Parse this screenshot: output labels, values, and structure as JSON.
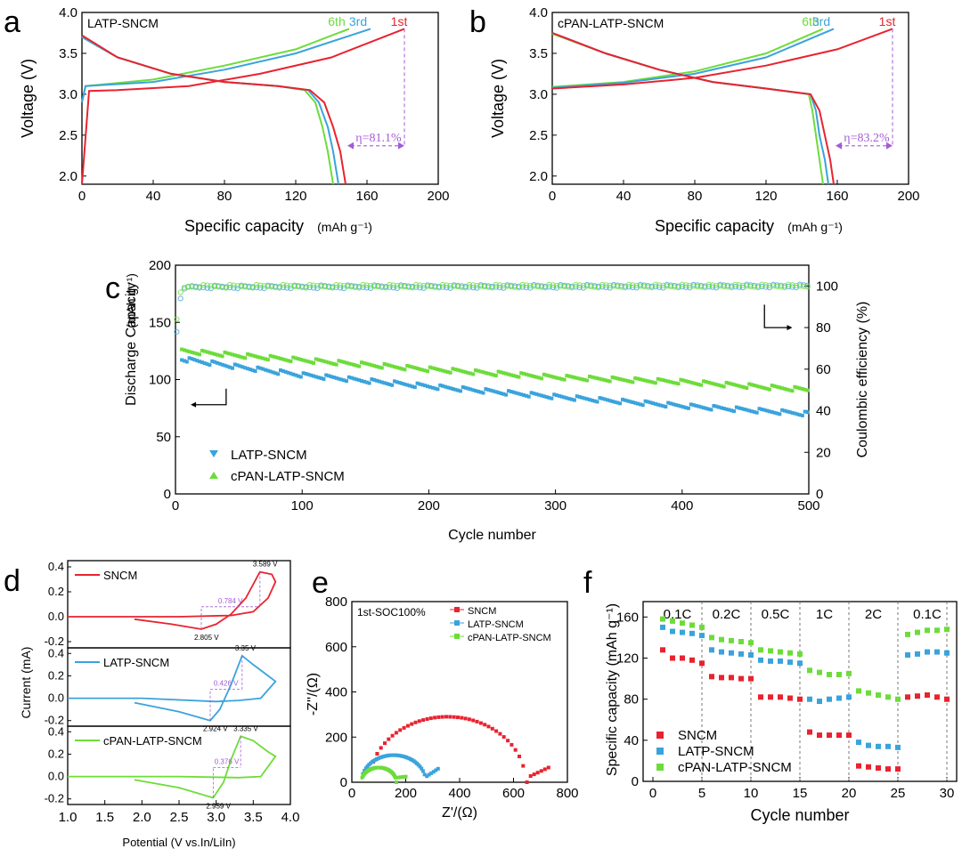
{
  "colors": {
    "red": "#e8232f",
    "blue": "#3aa3dc",
    "green": "#6ddc3a",
    "purple": "#a35cd6",
    "black": "#000000"
  },
  "chart_data": [
    {
      "panel": "a",
      "type": "line",
      "label": "LATP-SNCM",
      "xlabel": "Specific capacity",
      "xunit": "(mAh g⁻¹)",
      "ylabel": "Voltage (V)",
      "xlim": [
        0,
        200
      ],
      "ylim": [
        1.9,
        4.0
      ],
      "xticks": [
        "0",
        "40",
        "80",
        "120",
        "160",
        "200"
      ],
      "yticks": [
        "2.0",
        "2.5",
        "3.0",
        "3.5",
        "4.0"
      ],
      "curve_labels": [
        "6th",
        "3rd",
        "1st"
      ],
      "annotation": "η=81.1%",
      "series": [
        {
          "name": "1st",
          "color": "red",
          "charge": [
            [
              0,
              1.9
            ],
            [
              4,
              3.04
            ],
            [
              20,
              3.05
            ],
            [
              60,
              3.1
            ],
            [
              100,
              3.25
            ],
            [
              140,
              3.45
            ],
            [
              181,
              3.8
            ]
          ],
          "discharge": [
            [
              0,
              3.72
            ],
            [
              20,
              3.45
            ],
            [
              50,
              3.25
            ],
            [
              80,
              3.15
            ],
            [
              110,
              3.1
            ],
            [
              128,
              3.05
            ],
            [
              136,
              2.9
            ],
            [
              141,
              2.6
            ],
            [
              145,
              2.3
            ],
            [
              148,
              1.9
            ]
          ]
        },
        {
          "name": "3rd",
          "color": "blue",
          "charge": [
            [
              0,
              2.9
            ],
            [
              2,
              3.1
            ],
            [
              40,
              3.15
            ],
            [
              80,
              3.3
            ],
            [
              120,
              3.5
            ],
            [
              162,
              3.8
            ]
          ],
          "discharge": [
            [
              0,
              3.7
            ],
            [
              20,
              3.45
            ],
            [
              50,
              3.25
            ],
            [
              80,
              3.15
            ],
            [
              110,
              3.1
            ],
            [
              127,
              3.05
            ],
            [
              133,
              2.9
            ],
            [
              138,
              2.6
            ],
            [
              141,
              2.3
            ],
            [
              144,
              1.9
            ]
          ]
        },
        {
          "name": "6th",
          "color": "green",
          "charge": [
            [
              0,
              2.9
            ],
            [
              2,
              3.1
            ],
            [
              40,
              3.18
            ],
            [
              80,
              3.35
            ],
            [
              120,
              3.55
            ],
            [
              150,
              3.8
            ]
          ],
          "discharge": [
            [
              0,
              3.7
            ],
            [
              20,
              3.45
            ],
            [
              50,
              3.25
            ],
            [
              80,
              3.15
            ],
            [
              110,
              3.1
            ],
            [
              125,
              3.05
            ],
            [
              131,
              2.9
            ],
            [
              135,
              2.6
            ],
            [
              138,
              2.3
            ],
            [
              141,
              1.9
            ]
          ]
        }
      ]
    },
    {
      "panel": "b",
      "type": "line",
      "label": "cPAN-LATP-SNCM",
      "xlabel": "Specific capacity",
      "xunit": "(mAh g⁻¹)",
      "ylabel": "Voltage (V)",
      "xlim": [
        0,
        200
      ],
      "ylim": [
        1.9,
        4.0
      ],
      "xticks": [
        "0",
        "40",
        "80",
        "120",
        "160",
        "200"
      ],
      "yticks": [
        "2.0",
        "2.5",
        "3.0",
        "3.5",
        "4.0"
      ],
      "curve_labels": [
        "6th",
        "3rd",
        "1st"
      ],
      "annotation": "η=83.2%",
      "series": [
        {
          "name": "1st",
          "color": "red",
          "charge": [
            [
              0,
              3.07
            ],
            [
              40,
              3.12
            ],
            [
              80,
              3.2
            ],
            [
              120,
              3.35
            ],
            [
              160,
              3.55
            ],
            [
              191,
              3.8
            ]
          ],
          "discharge": [
            [
              0,
              3.75
            ],
            [
              30,
              3.5
            ],
            [
              60,
              3.3
            ],
            [
              90,
              3.15
            ],
            [
              120,
              3.07
            ],
            [
              145,
              3.0
            ],
            [
              150,
              2.8
            ],
            [
              153,
              2.5
            ],
            [
              156,
              2.2
            ],
            [
              158,
              1.9
            ]
          ]
        },
        {
          "name": "3rd",
          "color": "blue",
          "charge": [
            [
              0,
              3.08
            ],
            [
              40,
              3.14
            ],
            [
              80,
              3.25
            ],
            [
              120,
              3.45
            ],
            [
              158,
              3.8
            ]
          ],
          "discharge": [
            [
              0,
              3.75
            ],
            [
              30,
              3.5
            ],
            [
              60,
              3.3
            ],
            [
              90,
              3.15
            ],
            [
              120,
              3.07
            ],
            [
              145,
              3.0
            ],
            [
              148,
              2.8
            ],
            [
              150,
              2.5
            ],
            [
              153,
              2.2
            ],
            [
              155,
              1.9
            ]
          ]
        },
        {
          "name": "6th",
          "color": "green",
          "charge": [
            [
              0,
              3.09
            ],
            [
              40,
              3.15
            ],
            [
              80,
              3.28
            ],
            [
              120,
              3.5
            ],
            [
              152,
              3.8
            ]
          ],
          "discharge": [
            [
              0,
              3.74
            ],
            [
              30,
              3.5
            ],
            [
              60,
              3.3
            ],
            [
              90,
              3.15
            ],
            [
              120,
              3.07
            ],
            [
              144,
              3.0
            ],
            [
              146,
              2.8
            ],
            [
              148,
              2.5
            ],
            [
              150,
              2.2
            ],
            [
              152,
              1.9
            ]
          ]
        }
      ]
    },
    {
      "panel": "c",
      "type": "scatter",
      "xlabel": "Cycle number",
      "ylabel": "Discharge Capacity",
      "yunit": "(mAh g⁻¹)",
      "y2label": "Coulombic efficiency (%)",
      "xlim": [
        0,
        500
      ],
      "ylim": [
        0,
        200
      ],
      "y2lim": [
        0,
        110
      ],
      "xticks": [
        "0",
        "100",
        "200",
        "300",
        "400",
        "500"
      ],
      "yticks": [
        "0",
        "50",
        "100",
        "150",
        "200"
      ],
      "y2ticks": [
        "0",
        "20",
        "40",
        "60",
        "80",
        "100"
      ],
      "series": [
        {
          "name": "LATP-SNCM",
          "color": "blue",
          "capacity": [
            [
              5,
              118
            ],
            [
              50,
              111
            ],
            [
              100,
              104
            ],
            [
              200,
              94
            ],
            [
              300,
              85
            ],
            [
              400,
              77
            ],
            [
              500,
              70
            ]
          ],
          "ce": [
            [
              1,
              78
            ],
            [
              3,
              90
            ],
            [
              5,
              98
            ],
            [
              10,
              99.5
            ],
            [
              500,
              100
            ]
          ]
        },
        {
          "name": "cPAN-LATP-SNCM",
          "color": "green",
          "capacity": [
            [
              5,
              125
            ],
            [
              50,
              121
            ],
            [
              100,
              117
            ],
            [
              200,
              109
            ],
            [
              300,
              102
            ],
            [
              400,
              98
            ],
            [
              500,
              91
            ]
          ],
          "ce": [
            [
              1,
              84
            ],
            [
              3,
              95
            ],
            [
              5,
              99
            ],
            [
              10,
              99.8
            ],
            [
              500,
              100
            ]
          ]
        }
      ]
    },
    {
      "panel": "d",
      "type": "line",
      "xlabel": "Potential (V vs.In/LiIn)",
      "ylabel": "Current (mA)",
      "xlim": [
        1.0,
        4.0
      ],
      "xticks": [
        "1.0",
        "1.5",
        "2.0",
        "2.5",
        "3.0",
        "3.5",
        "4.0"
      ],
      "subplots": [
        {
          "name": "SNCM",
          "color": "red",
          "ylim": [
            -0.25,
            0.45
          ],
          "yticks": [
            "-0.2",
            "0.0",
            "0.2",
            "0.4"
          ],
          "peak_ox": "3.589 V",
          "peak_red": "2.805 V",
          "dv": "0.784 V",
          "px": [
            [
              1.9,
              -0.02
            ],
            [
              2.4,
              -0.06
            ],
            [
              2.8,
              -0.1
            ],
            [
              3.0,
              -0.06
            ],
            [
              3.2,
              0.02
            ],
            [
              3.4,
              0.15
            ],
            [
              3.59,
              0.36
            ],
            [
              3.75,
              0.34
            ],
            [
              3.8,
              0.28
            ],
            [
              3.7,
              0.15
            ],
            [
              3.5,
              0.04
            ],
            [
              3.2,
              0.01
            ],
            [
              2.5,
              0.0
            ],
            [
              1.0,
              0.0
            ]
          ]
        },
        {
          "name": "LATP-SNCM",
          "color": "blue",
          "ylim": [
            -0.25,
            0.45
          ],
          "yticks": [
            "-0.2",
            "0.0",
            "0.2",
            "0.4"
          ],
          "peak_ox": "3.35 V",
          "peak_red": "2.924 V",
          "dv": "0.426 V",
          "px": [
            [
              1.9,
              -0.04
            ],
            [
              2.5,
              -0.12
            ],
            [
              2.92,
              -0.2
            ],
            [
              3.05,
              -0.1
            ],
            [
              3.2,
              0.12
            ],
            [
              3.35,
              0.38
            ],
            [
              3.5,
              0.3
            ],
            [
              3.7,
              0.2
            ],
            [
              3.8,
              0.15
            ],
            [
              3.6,
              0.0
            ],
            [
              3.3,
              -0.02
            ],
            [
              3.0,
              -0.03
            ],
            [
              2.0,
              0.0
            ],
            [
              1.0,
              0.0
            ]
          ]
        },
        {
          "name": "cPAN-LATP-SNCM",
          "color": "green",
          "ylim": [
            -0.25,
            0.45
          ],
          "yticks": [
            "-0.2",
            "0.0",
            "0.2",
            "0.4"
          ],
          "peak_ox": "3.335 V",
          "peak_red": "2.959 V",
          "dv": "0.376 V",
          "px": [
            [
              1.9,
              -0.03
            ],
            [
              2.5,
              -0.1
            ],
            [
              2.96,
              -0.19
            ],
            [
              3.1,
              -0.05
            ],
            [
              3.2,
              0.15
            ],
            [
              3.33,
              0.36
            ],
            [
              3.5,
              0.32
            ],
            [
              3.7,
              0.22
            ],
            [
              3.8,
              0.18
            ],
            [
              3.6,
              0.0
            ],
            [
              3.3,
              -0.01
            ],
            [
              2.5,
              0.0
            ],
            [
              1.0,
              0.0
            ]
          ]
        }
      ]
    },
    {
      "panel": "e",
      "type": "scatter",
      "xlabel": "Z'/(Ω)",
      "ylabel": "-Z''/(Ω)",
      "xlim": [
        0,
        800
      ],
      "ylim": [
        0,
        800
      ],
      "xticks": [
        "0",
        "200",
        "400",
        "600",
        "800"
      ],
      "yticks": [
        "0",
        "200",
        "400",
        "600",
        "800"
      ],
      "annotation": "1st-SOC100%",
      "series": [
        {
          "name": "SNCM",
          "color": "red",
          "center": 355,
          "radius": 290,
          "tail_end": [
            730,
            65
          ],
          "arc_end": 650
        },
        {
          "name": "LATP-SNCM",
          "color": "blue",
          "center": 155,
          "radius": 120,
          "tail_end": [
            320,
            60
          ],
          "arc_end": 270
        },
        {
          "name": "cPAN-LATP-SNCM",
          "color": "green",
          "center": 100,
          "radius": 65,
          "tail_end": [
            200,
            25
          ],
          "arc_end": 165
        }
      ]
    },
    {
      "panel": "f",
      "type": "scatter",
      "xlabel": "Cycle number",
      "ylabel": "Specific capacity",
      "yunit": "(mAh g⁻¹)",
      "xlim": [
        -1,
        31
      ],
      "ylim": [
        0,
        175
      ],
      "xticks": [
        "0",
        "5",
        "10",
        "15",
        "20",
        "25",
        "30"
      ],
      "yticks": [
        "0",
        "40",
        "80",
        "120",
        "160"
      ],
      "rate_labels": [
        "0.1C",
        "0.2C",
        "0.5C",
        "1C",
        "2C",
        "0.1C"
      ],
      "series": [
        {
          "name": "SNCM",
          "color": "red",
          "values": [
            128,
            120,
            120,
            118,
            115,
            102,
            101,
            101,
            100,
            100,
            82,
            82,
            82,
            81,
            80,
            48,
            45,
            45,
            45,
            45,
            15,
            14,
            13,
            12,
            12,
            82,
            83,
            84,
            82,
            80
          ]
        },
        {
          "name": "LATP-SNCM",
          "color": "blue",
          "values": [
            150,
            146,
            145,
            144,
            142,
            128,
            126,
            125,
            124,
            123,
            118,
            117,
            117,
            116,
            115,
            80,
            78,
            80,
            81,
            82,
            38,
            35,
            34,
            34,
            33,
            123,
            124,
            126,
            126,
            125
          ]
        },
        {
          "name": "cPAN-LATP-SNCM",
          "color": "green",
          "values": [
            158,
            156,
            154,
            152,
            150,
            140,
            138,
            137,
            136,
            135,
            128,
            127,
            126,
            125,
            124,
            108,
            106,
            104,
            104,
            105,
            88,
            86,
            84,
            82,
            80,
            143,
            145,
            147,
            147,
            148
          ]
        }
      ]
    }
  ]
}
